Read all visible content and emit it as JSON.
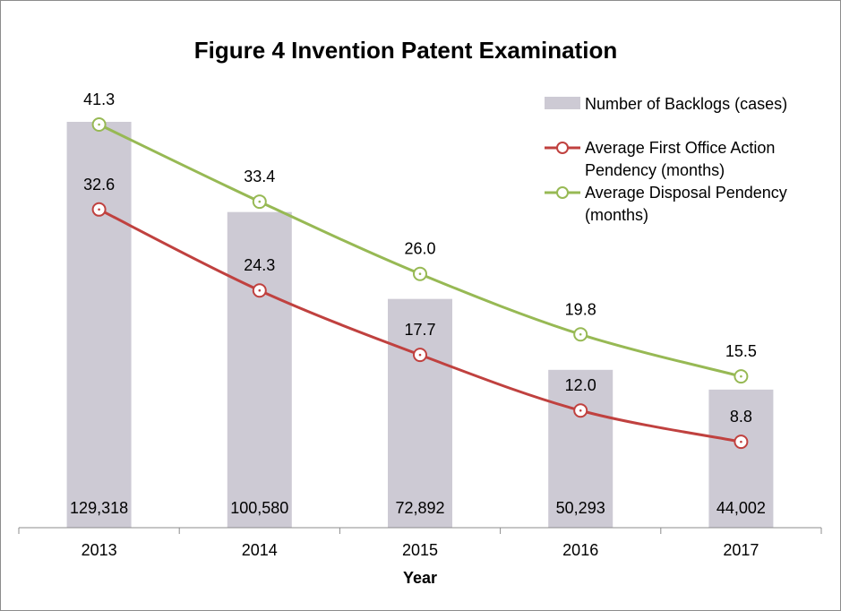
{
  "chart_data": {
    "type": "bar",
    "title": "Figure 4 Invention Patent Examination",
    "xlabel": "Year",
    "ylabel": "",
    "categories": [
      "2013",
      "2014",
      "2015",
      "2016",
      "2017"
    ],
    "bar_series": {
      "name": "Number of Backlogs (cases)",
      "values": [
        129318,
        100580,
        72892,
        50293,
        44002
      ],
      "value_labels": [
        "129,318",
        "100,580",
        "72,892",
        "50,293",
        "44,002"
      ],
      "color": "#cdcad4",
      "ylim": [
        0,
        140000
      ]
    },
    "line_series": [
      {
        "name_lines": [
          "Average First Office Action",
          "Pendency (months)"
        ],
        "values": [
          32.6,
          24.3,
          17.7,
          12.0,
          8.8
        ],
        "value_labels": [
          "32.6",
          "24.3",
          "17.7",
          "12.0",
          "8.8"
        ],
        "color": "#c0413f"
      },
      {
        "name_lines": [
          "Average Disposal Pendency",
          "(months)"
        ],
        "values": [
          41.3,
          33.4,
          26.0,
          19.8,
          15.5
        ],
        "value_labels": [
          "41.3",
          "33.4",
          "26.0",
          "19.8",
          "15.5"
        ],
        "color": "#97b954"
      }
    ],
    "line_ylim": [
      0,
      50
    ],
    "legend_position": "top-right",
    "grid": false
  }
}
